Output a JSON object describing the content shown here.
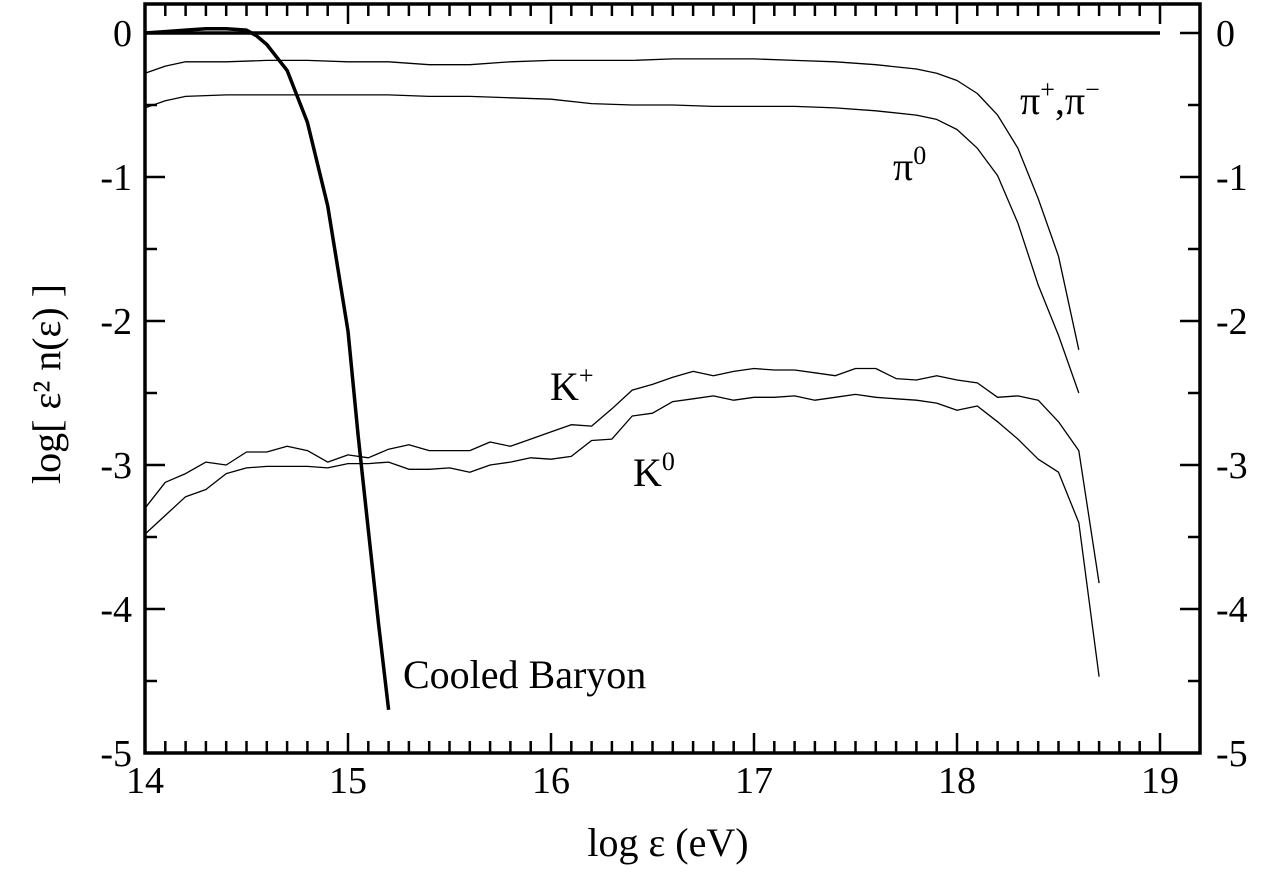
{
  "chart_data": {
    "type": "line",
    "title": "",
    "xlabel": "log ε (eV)",
    "ylabel": "log[ ε² n(ε) ]",
    "xlim": [
      14,
      19
    ],
    "ylim": [
      -5,
      0
    ],
    "xticks": [
      14,
      15,
      16,
      17,
      18,
      19
    ],
    "yticks": [
      0,
      -1,
      -2,
      -3,
      -4,
      -5
    ],
    "grid": false,
    "legend": "none",
    "reference_line": {
      "y": 0
    },
    "annotations": [
      {
        "label": "Cooled Baryon",
        "series": "cooled_baryon"
      },
      {
        "base": "π",
        "sup": "+",
        "sep": ",",
        "base2": "π",
        "sup2": "−",
        "series": "pi_pm"
      },
      {
        "base": "π",
        "sup": "0",
        "series": "pi0"
      },
      {
        "base": "K",
        "sup": "+",
        "series": "k_plus"
      },
      {
        "base": "K",
        "sup": "0",
        "series": "k0"
      }
    ],
    "series": [
      {
        "id": "cooled_baryon",
        "name": "Cooled Baryon",
        "style": "thick",
        "x": [
          14.0,
          14.1,
          14.2,
          14.3,
          14.4,
          14.5,
          14.55,
          14.6,
          14.7,
          14.8,
          14.9,
          15.0,
          15.05,
          15.1,
          15.15,
          15.2
        ],
        "y": [
          0.0,
          0.01,
          0.02,
          0.03,
          0.03,
          0.02,
          -0.02,
          -0.08,
          -0.26,
          -0.62,
          -1.2,
          -2.07,
          -2.8,
          -3.45,
          -4.1,
          -4.7
        ]
      },
      {
        "id": "pi_pm",
        "name": "π⁺,π⁻",
        "style": "thin",
        "x": [
          14.0,
          14.1,
          14.2,
          14.4,
          14.6,
          14.8,
          15.0,
          15.2,
          15.4,
          15.6,
          15.8,
          16.0,
          16.2,
          16.4,
          16.6,
          16.8,
          17.0,
          17.2,
          17.4,
          17.6,
          17.8,
          17.9,
          18.0,
          18.1,
          18.2,
          18.3,
          18.4,
          18.5,
          18.6
        ],
        "y": [
          -0.28,
          -0.23,
          -0.2,
          -0.2,
          -0.19,
          -0.19,
          -0.2,
          -0.2,
          -0.22,
          -0.22,
          -0.2,
          -0.19,
          -0.19,
          -0.19,
          -0.18,
          -0.18,
          -0.18,
          -0.19,
          -0.2,
          -0.22,
          -0.25,
          -0.28,
          -0.33,
          -0.42,
          -0.57,
          -0.8,
          -1.15,
          -1.55,
          -2.2
        ]
      },
      {
        "id": "pi0",
        "name": "π⁰",
        "style": "thin",
        "x": [
          14.0,
          14.1,
          14.2,
          14.4,
          14.6,
          14.8,
          15.0,
          15.2,
          15.4,
          15.6,
          15.8,
          16.0,
          16.2,
          16.4,
          16.6,
          16.8,
          17.0,
          17.2,
          17.4,
          17.6,
          17.8,
          17.9,
          18.0,
          18.1,
          18.2,
          18.3,
          18.4,
          18.5,
          18.6
        ],
        "y": [
          -0.52,
          -0.47,
          -0.44,
          -0.43,
          -0.43,
          -0.43,
          -0.43,
          -0.43,
          -0.44,
          -0.44,
          -0.45,
          -0.46,
          -0.49,
          -0.5,
          -0.5,
          -0.51,
          -0.51,
          -0.51,
          -0.52,
          -0.54,
          -0.57,
          -0.6,
          -0.67,
          -0.8,
          -0.99,
          -1.32,
          -1.75,
          -2.1,
          -2.5
        ]
      },
      {
        "id": "k_plus",
        "name": "K⁺",
        "style": "thin",
        "x": [
          14.0,
          14.1,
          14.2,
          14.3,
          14.4,
          14.5,
          14.6,
          14.7,
          14.8,
          14.9,
          15.0,
          15.1,
          15.2,
          15.3,
          15.4,
          15.5,
          15.6,
          15.7,
          15.8,
          15.9,
          16.0,
          16.1,
          16.2,
          16.3,
          16.4,
          16.5,
          16.6,
          16.7,
          16.8,
          16.9,
          17.0,
          17.1,
          17.2,
          17.3,
          17.4,
          17.5,
          17.6,
          17.7,
          17.8,
          17.9,
          18.0,
          18.1,
          18.2,
          18.3,
          18.4,
          18.5,
          18.6,
          18.7
        ],
        "y": [
          -3.3,
          -3.12,
          -3.06,
          -2.98,
          -3.0,
          -2.91,
          -2.91,
          -2.87,
          -2.9,
          -2.98,
          -2.93,
          -2.95,
          -2.89,
          -2.86,
          -2.9,
          -2.9,
          -2.9,
          -2.84,
          -2.87,
          -2.82,
          -2.77,
          -2.72,
          -2.73,
          -2.61,
          -2.48,
          -2.44,
          -2.39,
          -2.35,
          -2.38,
          -2.35,
          -2.33,
          -2.34,
          -2.34,
          -2.36,
          -2.38,
          -2.33,
          -2.33,
          -2.4,
          -2.41,
          -2.38,
          -2.41,
          -2.43,
          -2.53,
          -2.52,
          -2.55,
          -2.7,
          -2.9,
          -3.82
        ]
      },
      {
        "id": "k0",
        "name": "K⁰",
        "style": "thin",
        "x": [
          14.0,
          14.1,
          14.2,
          14.3,
          14.4,
          14.5,
          14.6,
          14.7,
          14.8,
          14.9,
          15.0,
          15.1,
          15.2,
          15.3,
          15.4,
          15.5,
          15.6,
          15.7,
          15.8,
          15.9,
          16.0,
          16.1,
          16.2,
          16.3,
          16.4,
          16.5,
          16.6,
          16.7,
          16.8,
          16.9,
          17.0,
          17.1,
          17.2,
          17.3,
          17.4,
          17.5,
          17.6,
          17.7,
          17.8,
          17.9,
          18.0,
          18.1,
          18.2,
          18.3,
          18.4,
          18.5,
          18.6,
          18.7
        ],
        "y": [
          -3.48,
          -3.35,
          -3.22,
          -3.17,
          -3.06,
          -3.02,
          -3.01,
          -3.01,
          -3.01,
          -3.02,
          -2.99,
          -2.99,
          -2.98,
          -3.03,
          -3.03,
          -3.02,
          -3.05,
          -3.0,
          -2.98,
          -2.95,
          -2.96,
          -2.94,
          -2.83,
          -2.82,
          -2.66,
          -2.64,
          -2.56,
          -2.54,
          -2.52,
          -2.55,
          -2.53,
          -2.53,
          -2.52,
          -2.55,
          -2.53,
          -2.51,
          -2.53,
          -2.54,
          -2.55,
          -2.57,
          -2.62,
          -2.59,
          -2.7,
          -2.82,
          -2.96,
          -3.05,
          -3.4,
          -4.47
        ]
      }
    ]
  }
}
